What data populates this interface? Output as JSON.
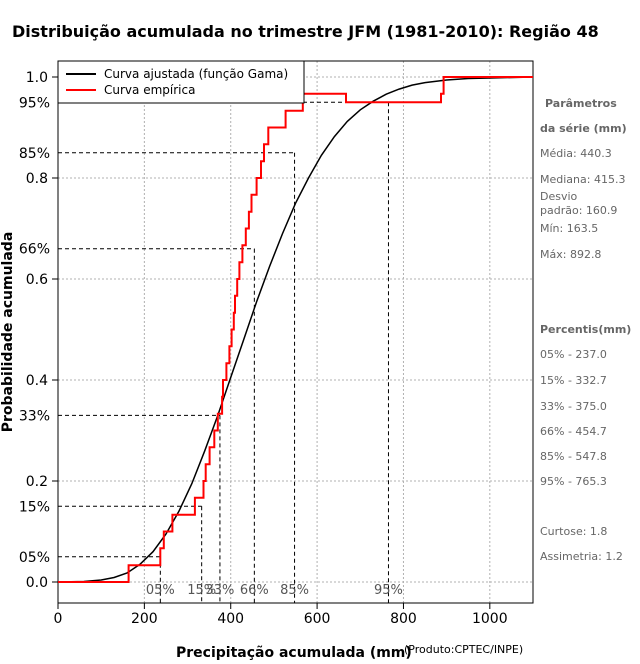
{
  "chart_data": {
    "type": "line",
    "title": "Distribuição acumulada no trimestre JFM (1981-2010): Região 48",
    "xlabel": "Precipitação acumulada (mm)",
    "ylabel": "Probabilidade acumulada",
    "credit": "(Produto:CPTEC/INPE)",
    "xlim": [
      0,
      1100
    ],
    "ylim": [
      -0.05,
      1.05
    ],
    "x_ticks": [
      0,
      200,
      400,
      600,
      800,
      1000
    ],
    "y_ticks": [
      {
        "v": 0.0,
        "label": "0.0"
      },
      {
        "v": 0.2,
        "label": "0.2"
      },
      {
        "v": 0.4,
        "label": "0.4"
      },
      {
        "v": 0.6,
        "label": "0.6"
      },
      {
        "v": 0.8,
        "label": "0.8"
      },
      {
        "v": 1.0,
        "label": "1.0"
      }
    ],
    "percentile_levels": [
      {
        "p": 0.05,
        "label": "05%",
        "x": 237.0
      },
      {
        "p": 0.15,
        "label": "15%",
        "x": 332.7
      },
      {
        "p": 0.33,
        "label": "33%",
        "x": 375.0
      },
      {
        "p": 0.66,
        "label": "66%",
        "x": 454.7
      },
      {
        "p": 0.85,
        "label": "85%",
        "x": 547.8
      },
      {
        "p": 0.95,
        "label": "95%",
        "x": 765.3
      }
    ],
    "legend": [
      {
        "label": "Curva ajustada (função Gama)",
        "color": "#000000"
      },
      {
        "label": "Curva empírica",
        "color": "#ff0000"
      }
    ],
    "series": [
      {
        "name": "Curva ajustada (função Gama)",
        "color": "#000000",
        "x": [
          0,
          60,
          100,
          130,
          160,
          190,
          220,
          250,
          280,
          310,
          340,
          370,
          400,
          430,
          460,
          490,
          520,
          550,
          580,
          610,
          640,
          670,
          700,
          730,
          760,
          790,
          820,
          850,
          900,
          950,
          1000,
          1100
        ],
        "values": [
          0.0,
          0.001,
          0.004,
          0.009,
          0.018,
          0.035,
          0.06,
          0.095,
          0.14,
          0.195,
          0.26,
          0.33,
          0.405,
          0.48,
          0.555,
          0.625,
          0.69,
          0.75,
          0.8,
          0.845,
          0.882,
          0.912,
          0.935,
          0.952,
          0.966,
          0.976,
          0.984,
          0.989,
          0.994,
          0.997,
          0.998,
          1.0
        ]
      },
      {
        "name": "Curva empírica",
        "color": "#ff0000",
        "x": [
          0,
          163.5,
          237,
          245,
          265,
          317,
          337,
          342,
          351,
          362,
          370,
          380,
          382,
          390,
          397,
          402,
          407,
          410,
          415,
          420,
          427,
          435,
          442,
          448,
          460,
          470,
          477,
          487,
          527,
          567,
          667,
          697,
          887,
          893,
          1100
        ],
        "values": [
          0,
          0.033,
          0.067,
          0.1,
          0.133,
          0.167,
          0.2,
          0.233,
          0.267,
          0.3,
          0.333,
          0.367,
          0.4,
          0.433,
          0.467,
          0.5,
          0.533,
          0.567,
          0.6,
          0.633,
          0.667,
          0.7,
          0.733,
          0.767,
          0.8,
          0.833,
          0.867,
          0.9,
          0.933,
          0.967,
          0.95,
          0.95,
          0.967,
          1.0,
          1.0
        ]
      }
    ]
  },
  "side_panel": {
    "params_title_1": "Parâmetros",
    "params_title_2": "da série (mm)",
    "media": "Média: 440.3",
    "mediana": "Mediana: 415.3",
    "desvio_1": "Desvio",
    "desvio_2": "padrão: 160.9",
    "min": "Mín: 163.5",
    "max": "Máx: 892.8",
    "percentis_title": "Percentis(mm)",
    "percentis": [
      "05% - 237.0",
      "15% - 332.7",
      "33% - 375.0",
      "66% - 454.7",
      "85% - 547.8",
      "95% - 765.3"
    ],
    "curtose": "Curtose: 1.8",
    "assimetria": "Assimetria: 1.2"
  }
}
